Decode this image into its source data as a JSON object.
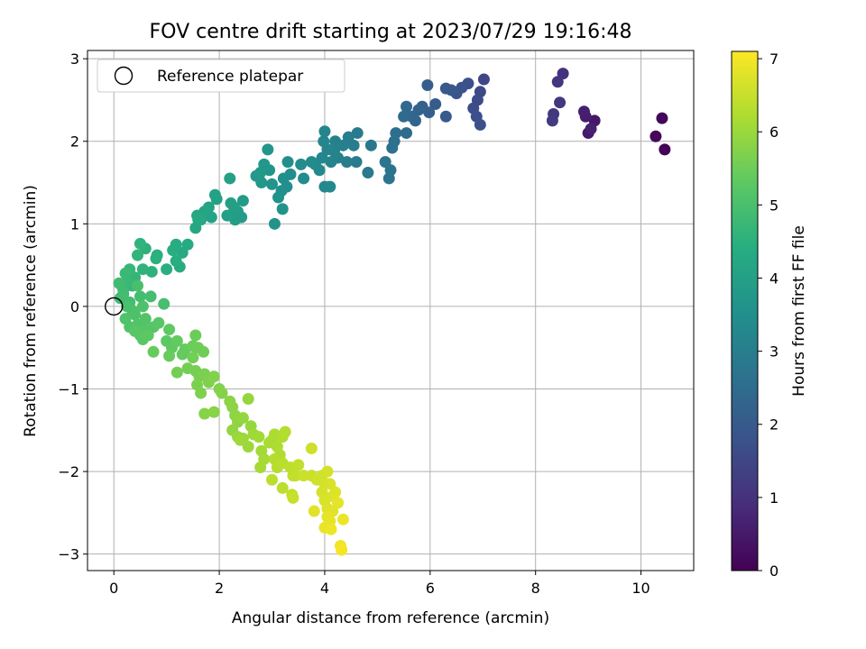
{
  "chart_data": {
    "type": "scatter",
    "title": "FOV centre drift starting at 2023/07/29 19:16:48",
    "xlabel": "Angular distance from reference (arcmin)",
    "ylabel": "Rotation from reference (arcmin)",
    "xlim": [
      -0.5,
      11
    ],
    "ylim": [
      -3.2,
      3.1
    ],
    "xticks": [
      0,
      2,
      4,
      6,
      8,
      10
    ],
    "yticks": [
      -3,
      -2,
      -1,
      0,
      1,
      2,
      3
    ],
    "grid": true,
    "legend": {
      "placement": "upper-left",
      "entries": [
        {
          "label": "Reference platepar",
          "marker": "open-circle",
          "x": 0,
          "y": 0
        }
      ]
    },
    "colorbar": {
      "label": "Hours from first FF file",
      "min": 0,
      "max": 7.1,
      "ticks": [
        0,
        1,
        2,
        3,
        4,
        5,
        6,
        7
      ],
      "colormap": "viridis"
    },
    "points": [
      {
        "x": 10.45,
        "y": 1.9,
        "t": 0.05
      },
      {
        "x": 10.4,
        "y": 2.28,
        "t": 0.1
      },
      {
        "x": 10.28,
        "y": 2.06,
        "t": 0.15
      },
      {
        "x": 9.12,
        "y": 2.25,
        "t": 0.45
      },
      {
        "x": 9.0,
        "y": 2.1,
        "t": 0.5
      },
      {
        "x": 8.95,
        "y": 2.3,
        "t": 0.55
      },
      {
        "x": 8.92,
        "y": 2.36,
        "t": 0.6
      },
      {
        "x": 9.05,
        "y": 2.15,
        "t": 0.65
      },
      {
        "x": 8.52,
        "y": 2.82,
        "t": 1.0
      },
      {
        "x": 8.42,
        "y": 2.72,
        "t": 1.05
      },
      {
        "x": 8.46,
        "y": 2.47,
        "t": 1.1
      },
      {
        "x": 8.34,
        "y": 2.33,
        "t": 1.15
      },
      {
        "x": 8.32,
        "y": 2.25,
        "t": 1.2
      },
      {
        "x": 7.02,
        "y": 2.75,
        "t": 1.5
      },
      {
        "x": 6.95,
        "y": 2.6,
        "t": 1.55
      },
      {
        "x": 6.9,
        "y": 2.5,
        "t": 1.6
      },
      {
        "x": 6.82,
        "y": 2.4,
        "t": 1.65
      },
      {
        "x": 6.88,
        "y": 2.3,
        "t": 1.7
      },
      {
        "x": 6.95,
        "y": 2.2,
        "t": 1.72
      },
      {
        "x": 6.72,
        "y": 2.7,
        "t": 1.75
      },
      {
        "x": 6.6,
        "y": 2.65,
        "t": 1.8
      },
      {
        "x": 6.5,
        "y": 2.58,
        "t": 1.85
      },
      {
        "x": 6.4,
        "y": 2.62,
        "t": 1.9
      },
      {
        "x": 6.3,
        "y": 2.64,
        "t": 1.95
      },
      {
        "x": 6.3,
        "y": 2.3,
        "t": 2.0
      },
      {
        "x": 6.1,
        "y": 2.45,
        "t": 2.05
      },
      {
        "x": 5.95,
        "y": 2.68,
        "t": 2.1
      },
      {
        "x": 5.98,
        "y": 2.35,
        "t": 2.15
      },
      {
        "x": 5.85,
        "y": 2.42,
        "t": 2.2
      },
      {
        "x": 5.78,
        "y": 2.38,
        "t": 2.25
      },
      {
        "x": 5.72,
        "y": 2.25,
        "t": 2.3
      },
      {
        "x": 5.65,
        "y": 2.3,
        "t": 2.35
      },
      {
        "x": 5.55,
        "y": 2.42,
        "t": 2.4
      },
      {
        "x": 5.5,
        "y": 2.3,
        "t": 2.45
      },
      {
        "x": 5.55,
        "y": 2.1,
        "t": 2.5
      },
      {
        "x": 5.35,
        "y": 2.1,
        "t": 2.55
      },
      {
        "x": 5.32,
        "y": 2.0,
        "t": 2.6
      },
      {
        "x": 5.28,
        "y": 1.92,
        "t": 2.65
      },
      {
        "x": 5.22,
        "y": 1.55,
        "t": 2.7
      },
      {
        "x": 5.25,
        "y": 1.65,
        "t": 2.72
      },
      {
        "x": 5.15,
        "y": 1.75,
        "t": 2.75
      },
      {
        "x": 4.88,
        "y": 1.95,
        "t": 2.8
      },
      {
        "x": 4.82,
        "y": 1.62,
        "t": 2.85
      },
      {
        "x": 4.62,
        "y": 2.1,
        "t": 2.9
      },
      {
        "x": 4.6,
        "y": 1.75,
        "t": 2.92
      },
      {
        "x": 4.55,
        "y": 1.95,
        "t": 2.95
      },
      {
        "x": 4.45,
        "y": 2.05,
        "t": 3.0
      },
      {
        "x": 4.42,
        "y": 1.75,
        "t": 3.02
      },
      {
        "x": 4.35,
        "y": 1.95,
        "t": 3.05
      },
      {
        "x": 4.25,
        "y": 1.8,
        "t": 3.08
      },
      {
        "x": 4.2,
        "y": 2.0,
        "t": 3.1
      },
      {
        "x": 4.18,
        "y": 1.88,
        "t": 3.12
      },
      {
        "x": 4.12,
        "y": 1.75,
        "t": 3.15
      },
      {
        "x": 4.05,
        "y": 1.9,
        "t": 3.18
      },
      {
        "x": 4.0,
        "y": 2.12,
        "t": 3.2
      },
      {
        "x": 3.98,
        "y": 2.0,
        "t": 3.22
      },
      {
        "x": 3.95,
        "y": 1.8,
        "t": 3.25
      },
      {
        "x": 4.1,
        "y": 1.45,
        "t": 3.28
      },
      {
        "x": 4.0,
        "y": 1.45,
        "t": 3.3
      },
      {
        "x": 3.9,
        "y": 1.65,
        "t": 3.32
      },
      {
        "x": 3.82,
        "y": 1.72,
        "t": 3.35
      },
      {
        "x": 3.75,
        "y": 1.75,
        "t": 3.38
      },
      {
        "x": 3.6,
        "y": 1.55,
        "t": 3.4
      },
      {
        "x": 3.55,
        "y": 1.72,
        "t": 3.42
      },
      {
        "x": 3.35,
        "y": 1.6,
        "t": 3.45
      },
      {
        "x": 3.3,
        "y": 1.75,
        "t": 3.48
      },
      {
        "x": 3.28,
        "y": 1.45,
        "t": 3.5
      },
      {
        "x": 3.22,
        "y": 1.55,
        "t": 3.52
      },
      {
        "x": 3.18,
        "y": 1.4,
        "t": 3.55
      },
      {
        "x": 3.12,
        "y": 1.32,
        "t": 3.58
      },
      {
        "x": 3.2,
        "y": 1.18,
        "t": 3.6
      },
      {
        "x": 3.05,
        "y": 1.0,
        "t": 3.62
      },
      {
        "x": 3.0,
        "y": 1.48,
        "t": 3.65
      },
      {
        "x": 2.95,
        "y": 1.65,
        "t": 3.68
      },
      {
        "x": 2.92,
        "y": 1.9,
        "t": 3.7
      },
      {
        "x": 2.85,
        "y": 1.72,
        "t": 3.72
      },
      {
        "x": 2.8,
        "y": 1.5,
        "t": 3.75
      },
      {
        "x": 2.78,
        "y": 1.62,
        "t": 3.78
      },
      {
        "x": 2.7,
        "y": 1.58,
        "t": 3.8
      },
      {
        "x": 2.45,
        "y": 1.28,
        "t": 3.85
      },
      {
        "x": 2.42,
        "y": 1.08,
        "t": 3.88
      },
      {
        "x": 2.35,
        "y": 1.15,
        "t": 3.9
      },
      {
        "x": 2.3,
        "y": 1.05,
        "t": 3.92
      },
      {
        "x": 2.28,
        "y": 1.2,
        "t": 3.95
      },
      {
        "x": 2.22,
        "y": 1.25,
        "t": 3.98
      },
      {
        "x": 2.2,
        "y": 1.55,
        "t": 4.0
      },
      {
        "x": 2.15,
        "y": 1.1,
        "t": 4.02
      },
      {
        "x": 1.95,
        "y": 1.3,
        "t": 4.05
      },
      {
        "x": 1.92,
        "y": 1.35,
        "t": 4.08
      },
      {
        "x": 1.85,
        "y": 1.08,
        "t": 4.1
      },
      {
        "x": 1.8,
        "y": 1.2,
        "t": 4.12
      },
      {
        "x": 1.72,
        "y": 1.15,
        "t": 4.15
      },
      {
        "x": 1.65,
        "y": 1.05,
        "t": 4.18
      },
      {
        "x": 1.58,
        "y": 1.1,
        "t": 4.2
      },
      {
        "x": 1.55,
        "y": 0.95,
        "t": 4.22
      },
      {
        "x": 1.6,
        "y": 1.05,
        "t": 4.25
      },
      {
        "x": 1.4,
        "y": 0.75,
        "t": 4.3
      },
      {
        "x": 1.3,
        "y": 0.65,
        "t": 4.32
      },
      {
        "x": 1.25,
        "y": 0.48,
        "t": 4.35
      },
      {
        "x": 1.18,
        "y": 0.75,
        "t": 4.38
      },
      {
        "x": 1.12,
        "y": 0.68,
        "t": 4.4
      },
      {
        "x": 1.18,
        "y": 0.55,
        "t": 4.42
      },
      {
        "x": 1.0,
        "y": 0.45,
        "t": 4.45
      },
      {
        "x": 0.82,
        "y": 0.62,
        "t": 4.48
      },
      {
        "x": 0.8,
        "y": 0.58,
        "t": 4.5
      },
      {
        "x": 0.72,
        "y": 0.42,
        "t": 4.52
      },
      {
        "x": 0.6,
        "y": 0.7,
        "t": 4.55
      },
      {
        "x": 0.55,
        "y": 0.45,
        "t": 4.58
      },
      {
        "x": 0.5,
        "y": 0.76,
        "t": 4.6
      },
      {
        "x": 0.45,
        "y": 0.62,
        "t": 4.62
      },
      {
        "x": 0.4,
        "y": 0.35,
        "t": 4.65
      },
      {
        "x": 0.35,
        "y": 0.25,
        "t": 4.68
      },
      {
        "x": 0.3,
        "y": 0.45,
        "t": 4.7
      },
      {
        "x": 0.25,
        "y": 0.3,
        "t": 4.72
      },
      {
        "x": 0.22,
        "y": 0.4,
        "t": 4.75
      },
      {
        "x": 0.18,
        "y": 0.2,
        "t": 4.78
      },
      {
        "x": 0.15,
        "y": 0.25,
        "t": 4.8
      },
      {
        "x": 0.12,
        "y": 0.1,
        "t": 4.82
      },
      {
        "x": 0.1,
        "y": 0.28,
        "t": 4.85
      },
      {
        "x": 0.18,
        "y": 0.15,
        "t": 4.88
      },
      {
        "x": 0.3,
        "y": 0.05,
        "t": 4.9
      },
      {
        "x": 0.5,
        "y": 0.12,
        "t": 4.92
      },
      {
        "x": 0.7,
        "y": 0.12,
        "t": 4.94
      },
      {
        "x": 0.95,
        "y": 0.03,
        "t": 4.96
      },
      {
        "x": 0.45,
        "y": 0.25,
        "t": 4.98
      },
      {
        "x": 0.25,
        "y": 0.0,
        "t": 5.0
      },
      {
        "x": 0.35,
        "y": -0.05,
        "t": 5.02
      },
      {
        "x": 0.4,
        "y": -0.1,
        "t": 5.04
      },
      {
        "x": 0.55,
        "y": 0.0,
        "t": 5.06
      },
      {
        "x": 0.22,
        "y": -0.15,
        "t": 5.08
      },
      {
        "x": 0.3,
        "y": -0.25,
        "t": 5.1
      },
      {
        "x": 0.45,
        "y": -0.22,
        "t": 5.12
      },
      {
        "x": 0.6,
        "y": -0.15,
        "t": 5.14
      },
      {
        "x": 0.5,
        "y": -0.35,
        "t": 5.16
      },
      {
        "x": 0.6,
        "y": -0.28,
        "t": 5.18
      },
      {
        "x": 0.75,
        "y": -0.25,
        "t": 5.2
      },
      {
        "x": 0.85,
        "y": -0.2,
        "t": 5.22
      },
      {
        "x": 0.4,
        "y": -0.3,
        "t": 5.24
      },
      {
        "x": 0.55,
        "y": -0.4,
        "t": 5.26
      },
      {
        "x": 0.65,
        "y": -0.35,
        "t": 5.28
      },
      {
        "x": 1.0,
        "y": -0.42,
        "t": 5.3
      },
      {
        "x": 1.05,
        "y": -0.28,
        "t": 5.32
      },
      {
        "x": 1.1,
        "y": -0.5,
        "t": 5.34
      },
      {
        "x": 1.2,
        "y": -0.42,
        "t": 5.36
      },
      {
        "x": 1.3,
        "y": -0.58,
        "t": 5.38
      },
      {
        "x": 1.35,
        "y": -0.52,
        "t": 5.4
      },
      {
        "x": 0.75,
        "y": -0.55,
        "t": 5.42
      },
      {
        "x": 1.05,
        "y": -0.6,
        "t": 5.44
      },
      {
        "x": 1.5,
        "y": -0.48,
        "t": 5.46
      },
      {
        "x": 1.55,
        "y": -0.35,
        "t": 5.48
      },
      {
        "x": 1.6,
        "y": -0.5,
        "t": 5.5
      },
      {
        "x": 1.7,
        "y": -0.55,
        "t": 5.52
      },
      {
        "x": 1.5,
        "y": -0.62,
        "t": 5.54
      },
      {
        "x": 1.2,
        "y": -0.8,
        "t": 5.56
      },
      {
        "x": 1.4,
        "y": -0.75,
        "t": 5.58
      },
      {
        "x": 1.55,
        "y": -0.78,
        "t": 5.6
      },
      {
        "x": 1.62,
        "y": -0.85,
        "t": 5.62
      },
      {
        "x": 1.72,
        "y": -0.82,
        "t": 5.64
      },
      {
        "x": 1.58,
        "y": -0.95,
        "t": 5.66
      },
      {
        "x": 1.65,
        "y": -1.05,
        "t": 5.68
      },
      {
        "x": 1.8,
        "y": -0.92,
        "t": 5.7
      },
      {
        "x": 1.9,
        "y": -0.85,
        "t": 5.72
      },
      {
        "x": 2.0,
        "y": -1.0,
        "t": 5.74
      },
      {
        "x": 2.05,
        "y": -1.05,
        "t": 5.76
      },
      {
        "x": 1.72,
        "y": -1.3,
        "t": 5.78
      },
      {
        "x": 1.9,
        "y": -1.28,
        "t": 5.8
      },
      {
        "x": 2.2,
        "y": -1.15,
        "t": 5.82
      },
      {
        "x": 2.25,
        "y": -1.22,
        "t": 5.84
      },
      {
        "x": 2.3,
        "y": -1.32,
        "t": 5.86
      },
      {
        "x": 2.35,
        "y": -1.4,
        "t": 5.88
      },
      {
        "x": 2.25,
        "y": -1.5,
        "t": 5.9
      },
      {
        "x": 2.45,
        "y": -1.35,
        "t": 5.92
      },
      {
        "x": 2.55,
        "y": -1.12,
        "t": 5.94
      },
      {
        "x": 2.6,
        "y": -1.45,
        "t": 5.96
      },
      {
        "x": 2.35,
        "y": -1.58,
        "t": 5.98
      },
      {
        "x": 2.45,
        "y": -1.6,
        "t": 6.0
      },
      {
        "x": 2.55,
        "y": -1.7,
        "t": 6.02
      },
      {
        "x": 2.4,
        "y": -1.62,
        "t": 6.04
      },
      {
        "x": 2.65,
        "y": -1.55,
        "t": 6.06
      },
      {
        "x": 2.75,
        "y": -1.58,
        "t": 6.08
      },
      {
        "x": 2.8,
        "y": -1.75,
        "t": 6.1
      },
      {
        "x": 2.78,
        "y": -1.95,
        "t": 6.12
      },
      {
        "x": 2.85,
        "y": -1.85,
        "t": 6.14
      },
      {
        "x": 2.95,
        "y": -1.65,
        "t": 6.16
      },
      {
        "x": 3.0,
        "y": -1.62,
        "t": 6.18
      },
      {
        "x": 3.05,
        "y": -1.55,
        "t": 6.2
      },
      {
        "x": 3.1,
        "y": -1.7,
        "t": 6.22
      },
      {
        "x": 3.15,
        "y": -1.8,
        "t": 6.24
      },
      {
        "x": 3.2,
        "y": -1.58,
        "t": 6.26
      },
      {
        "x": 3.25,
        "y": -1.52,
        "t": 6.28
      },
      {
        "x": 3.05,
        "y": -1.85,
        "t": 6.3
      },
      {
        "x": 3.1,
        "y": -1.95,
        "t": 6.32
      },
      {
        "x": 3.2,
        "y": -1.9,
        "t": 6.34
      },
      {
        "x": 3.0,
        "y": -2.1,
        "t": 6.36
      },
      {
        "x": 3.2,
        "y": -2.2,
        "t": 6.38
      },
      {
        "x": 3.35,
        "y": -1.95,
        "t": 6.4
      },
      {
        "x": 3.4,
        "y": -2.05,
        "t": 6.42
      },
      {
        "x": 3.45,
        "y": -2.05,
        "t": 6.44
      },
      {
        "x": 3.5,
        "y": -1.92,
        "t": 6.46
      },
      {
        "x": 3.38,
        "y": -2.28,
        "t": 6.48
      },
      {
        "x": 3.4,
        "y": -2.32,
        "t": 6.5
      },
      {
        "x": 3.6,
        "y": -2.05,
        "t": 6.52
      },
      {
        "x": 3.75,
        "y": -2.05,
        "t": 6.54
      },
      {
        "x": 3.75,
        "y": -1.72,
        "t": 6.56
      },
      {
        "x": 3.85,
        "y": -2.1,
        "t": 6.58
      },
      {
        "x": 3.95,
        "y": -2.05,
        "t": 6.6
      },
      {
        "x": 4.0,
        "y": -2.15,
        "t": 6.62
      },
      {
        "x": 4.05,
        "y": -2.0,
        "t": 6.64
      },
      {
        "x": 3.95,
        "y": -2.25,
        "t": 6.66
      },
      {
        "x": 4.0,
        "y": -2.35,
        "t": 6.68
      },
      {
        "x": 4.1,
        "y": -2.15,
        "t": 6.7
      },
      {
        "x": 4.15,
        "y": -2.3,
        "t": 6.72
      },
      {
        "x": 4.2,
        "y": -2.25,
        "t": 6.74
      },
      {
        "x": 4.05,
        "y": -2.45,
        "t": 6.76
      },
      {
        "x": 4.15,
        "y": -2.48,
        "t": 6.78
      },
      {
        "x": 3.8,
        "y": -2.48,
        "t": 6.8
      },
      {
        "x": 4.25,
        "y": -2.38,
        "t": 6.82
      },
      {
        "x": 4.05,
        "y": -2.55,
        "t": 6.84
      },
      {
        "x": 4.1,
        "y": -2.6,
        "t": 6.86
      },
      {
        "x": 4.0,
        "y": -2.68,
        "t": 6.88
      },
      {
        "x": 4.35,
        "y": -2.58,
        "t": 6.9
      },
      {
        "x": 4.12,
        "y": -2.7,
        "t": 6.92
      },
      {
        "x": 4.3,
        "y": -2.9,
        "t": 6.96
      },
      {
        "x": 4.32,
        "y": -2.95,
        "t": 7.0
      }
    ]
  }
}
